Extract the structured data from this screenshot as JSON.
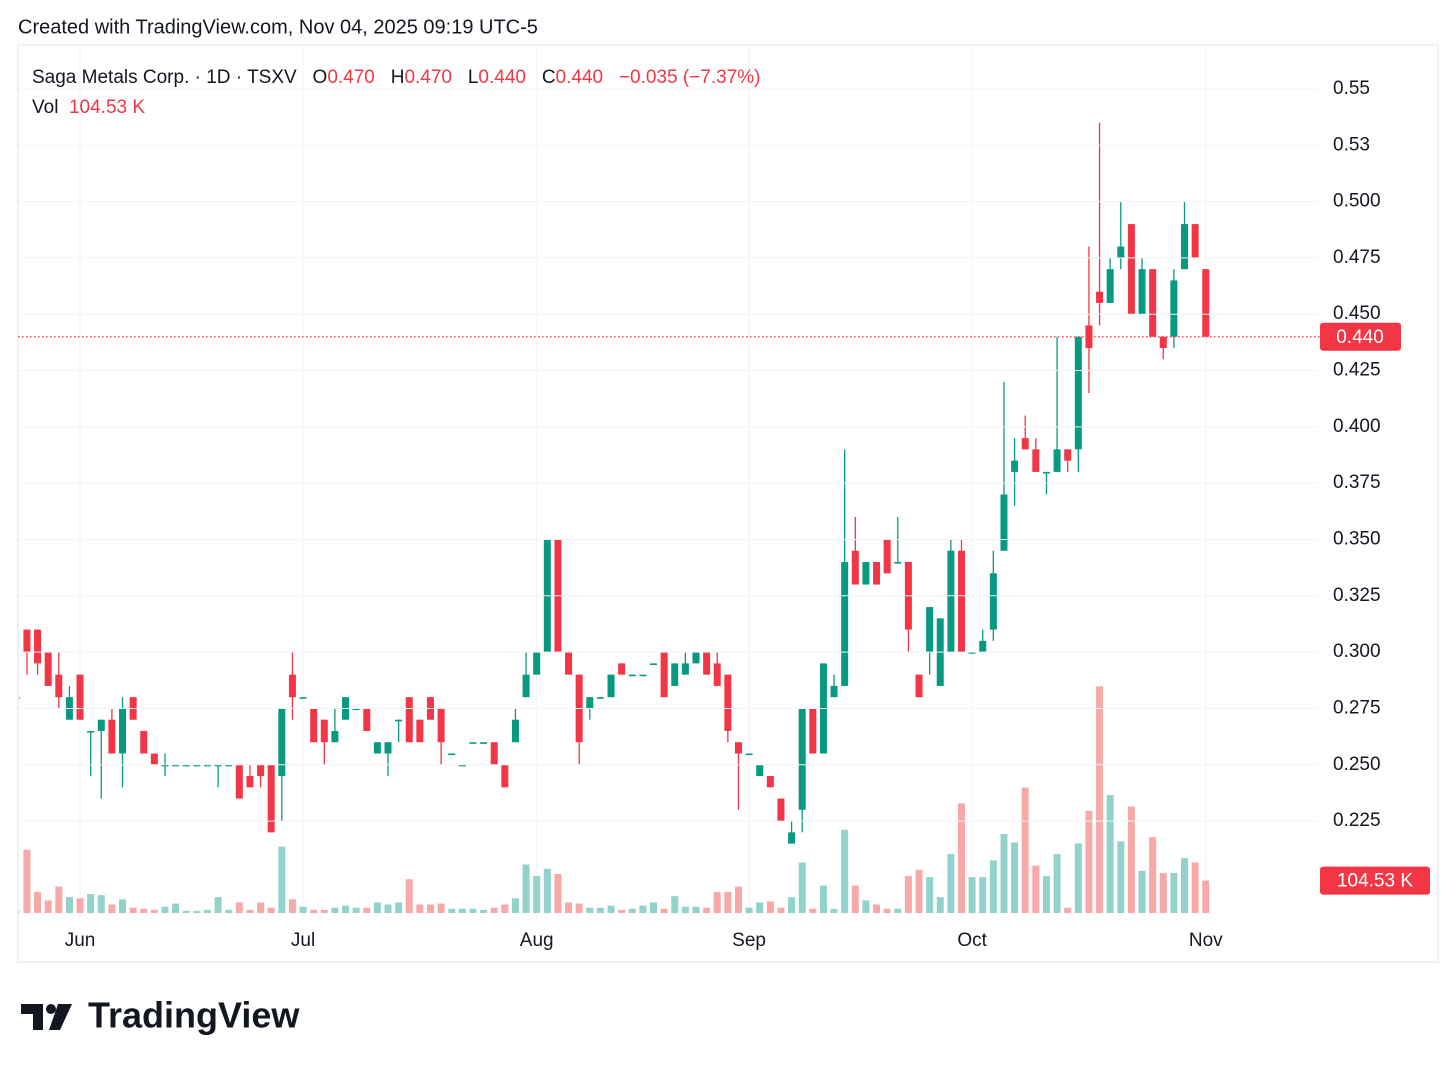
{
  "header": "Created with TradingView.com, Nov 04, 2025 09:19 UTC-5",
  "brand": "TradingView",
  "chart_data": {
    "type": "candlestick",
    "legend": {
      "symbol": "Saga Metals Corp. · 1D · TSXV",
      "open_label": "O",
      "open": "0.470",
      "high_label": "H",
      "high": "0.470",
      "low_label": "L",
      "low": "0.440",
      "close_label": "C",
      "close": "0.440",
      "change": "−0.035 (−7.37%)",
      "volume_label": "Vol",
      "volume": "104.53 K"
    },
    "up_color": "#089981",
    "down_color": "#f23645",
    "up_volume_color": "#92d2cc",
    "down_volume_color": "#f7a9a7",
    "categories": [
      null,
      null,
      null,
      null,
      null,
      null,
      "Jun",
      null,
      null,
      null,
      null,
      null,
      null,
      null,
      null,
      null,
      null,
      null,
      null,
      null,
      null,
      null,
      null,
      null,
      null,
      null,
      null,
      "Jul",
      null,
      null,
      null,
      null,
      null,
      null,
      null,
      null,
      null,
      null,
      null,
      null,
      null,
      null,
      null,
      null,
      null,
      null,
      null,
      null,
      null,
      "Aug",
      null,
      null,
      null,
      null,
      null,
      null,
      null,
      null,
      null,
      null,
      null,
      null,
      null,
      null,
      null,
      null,
      null,
      null,
      null,
      "Sep",
      null,
      null,
      null,
      null,
      null,
      null,
      null,
      null,
      null,
      null,
      null,
      null,
      null,
      null,
      null,
      null,
      null,
      null,
      null,
      null,
      "Oct",
      null,
      null,
      null,
      null,
      null,
      null,
      null,
      null,
      null,
      null,
      null,
      null,
      null,
      null,
      null,
      null,
      null,
      null,
      null,
      null,
      null,
      "Nov"
    ],
    "open": [
      0.28,
      0.31,
      0.31,
      0.3,
      0.29,
      0.27,
      0.29,
      0.265,
      0.265,
      0.27,
      0.255,
      0.28,
      0.265,
      0.255,
      0.25,
      0.25,
      0.25,
      0.25,
      0.25,
      0.25,
      0.25,
      0.25,
      0.245,
      0.25,
      0.25,
      0.245,
      0.29,
      0.28,
      0.275,
      0.27,
      0.26,
      0.27,
      0.275,
      0.275,
      0.255,
      0.255,
      0.27,
      0.28,
      0.27,
      0.28,
      0.275,
      0.255,
      0.25,
      0.26,
      0.26,
      0.26,
      0.25,
      0.26,
      0.28,
      0.29,
      0.3,
      0.35,
      0.3,
      0.29,
      0.275,
      0.28,
      0.28,
      0.295,
      0.29,
      0.29,
      0.295,
      0.3,
      0.285,
      0.29,
      0.295,
      0.3,
      0.295,
      0.29,
      0.26,
      0.255,
      0.245,
      0.245,
      0.235,
      0.215,
      0.23,
      0.275,
      0.255,
      0.28,
      0.285,
      0.345,
      0.33,
      0.34,
      0.35,
      0.34,
      0.34,
      0.29,
      0.3,
      0.285,
      0.3,
      0.345,
      0.3,
      0.3,
      0.31,
      0.345,
      0.38,
      0.395,
      0.39,
      0.38,
      0.38,
      0.39,
      0.39,
      0.445,
      0.46,
      0.455,
      0.475,
      0.49,
      0.45,
      0.47,
      0.44,
      0.44,
      0.47,
      0.49,
      0.47
    ],
    "high": [
      0.28,
      0.31,
      0.31,
      0.3,
      0.3,
      0.285,
      0.29,
      0.265,
      0.27,
      0.275,
      0.28,
      0.28,
      0.265,
      0.255,
      0.255,
      0.25,
      0.25,
      0.25,
      0.25,
      0.25,
      0.25,
      0.25,
      0.25,
      0.25,
      0.25,
      0.275,
      0.3,
      0.28,
      0.275,
      0.27,
      0.275,
      0.28,
      0.275,
      0.275,
      0.26,
      0.26,
      0.27,
      0.28,
      0.27,
      0.28,
      0.275,
      0.255,
      0.25,
      0.26,
      0.26,
      0.26,
      0.25,
      0.275,
      0.3,
      0.3,
      0.35,
      0.35,
      0.3,
      0.29,
      0.28,
      0.28,
      0.29,
      0.295,
      0.29,
      0.29,
      0.295,
      0.3,
      0.295,
      0.3,
      0.3,
      0.3,
      0.3,
      0.29,
      0.26,
      0.255,
      0.25,
      0.245,
      0.235,
      0.225,
      0.275,
      0.275,
      0.295,
      0.29,
      0.39,
      0.36,
      0.34,
      0.34,
      0.35,
      0.36,
      0.34,
      0.29,
      0.32,
      0.315,
      0.35,
      0.35,
      0.3,
      0.31,
      0.345,
      0.42,
      0.395,
      0.405,
      0.395,
      0.38,
      0.44,
      0.39,
      0.44,
      0.48,
      0.535,
      0.475,
      0.5,
      0.49,
      0.475,
      0.47,
      0.44,
      0.47,
      0.5,
      0.49,
      0.47
    ],
    "low": [
      0.28,
      0.29,
      0.29,
      0.285,
      0.275,
      0.27,
      0.27,
      0.245,
      0.235,
      0.255,
      0.24,
      0.27,
      0.255,
      0.25,
      0.245,
      0.25,
      0.25,
      0.25,
      0.25,
      0.24,
      0.25,
      0.235,
      0.24,
      0.24,
      0.22,
      0.225,
      0.27,
      0.28,
      0.26,
      0.25,
      0.26,
      0.27,
      0.275,
      0.265,
      0.255,
      0.245,
      0.26,
      0.26,
      0.26,
      0.27,
      0.25,
      0.255,
      0.25,
      0.26,
      0.26,
      0.25,
      0.24,
      0.26,
      0.28,
      0.29,
      0.3,
      0.3,
      0.29,
      0.25,
      0.27,
      0.28,
      0.28,
      0.29,
      0.29,
      0.29,
      0.295,
      0.28,
      0.285,
      0.29,
      0.295,
      0.29,
      0.285,
      0.26,
      0.23,
      0.255,
      0.245,
      0.24,
      0.225,
      0.215,
      0.22,
      0.255,
      0.255,
      0.28,
      0.285,
      0.33,
      0.33,
      0.33,
      0.335,
      0.34,
      0.3,
      0.28,
      0.29,
      0.285,
      0.3,
      0.3,
      0.3,
      0.3,
      0.305,
      0.345,
      0.365,
      0.39,
      0.38,
      0.37,
      0.38,
      0.38,
      0.38,
      0.415,
      0.445,
      0.455,
      0.47,
      0.45,
      0.45,
      0.44,
      0.43,
      0.435,
      0.47,
      0.475,
      0.44
    ],
    "close": [
      0.28,
      0.3,
      0.295,
      0.285,
      0.28,
      0.28,
      0.27,
      0.265,
      0.27,
      0.255,
      0.275,
      0.27,
      0.255,
      0.25,
      0.25,
      0.25,
      0.25,
      0.25,
      0.25,
      0.25,
      0.25,
      0.235,
      0.24,
      0.245,
      0.22,
      0.275,
      0.28,
      0.28,
      0.26,
      0.26,
      0.265,
      0.28,
      0.275,
      0.265,
      0.26,
      0.26,
      0.27,
      0.26,
      0.26,
      0.27,
      0.26,
      0.255,
      0.25,
      0.26,
      0.26,
      0.25,
      0.24,
      0.27,
      0.29,
      0.3,
      0.35,
      0.3,
      0.29,
      0.26,
      0.28,
      0.28,
      0.29,
      0.29,
      0.29,
      0.29,
      0.295,
      0.28,
      0.295,
      0.295,
      0.3,
      0.29,
      0.285,
      0.265,
      0.255,
      0.255,
      0.25,
      0.24,
      0.225,
      0.22,
      0.275,
      0.255,
      0.295,
      0.285,
      0.34,
      0.33,
      0.34,
      0.33,
      0.335,
      0.34,
      0.31,
      0.28,
      0.32,
      0.315,
      0.345,
      0.3,
      0.3,
      0.305,
      0.335,
      0.37,
      0.385,
      0.39,
      0.38,
      0.38,
      0.39,
      0.385,
      0.44,
      0.435,
      0.455,
      0.47,
      0.48,
      0.45,
      0.47,
      0.44,
      0.435,
      0.465,
      0.49,
      0.475,
      0.44
    ],
    "volume": [
      6800,
      204000,
      68000,
      40800,
      85000,
      51000,
      47600,
      61200,
      57800,
      27200,
      44200,
      17000,
      13600,
      10200,
      20400,
      30600,
      6800,
      6800,
      10200,
      51000,
      10200,
      34000,
      10200,
      34000,
      17000,
      214200,
      44200,
      20400,
      10200,
      10200,
      17000,
      23800,
      17000,
      17000,
      34000,
      27200,
      34000,
      108800,
      27200,
      27200,
      30600,
      13600,
      13600,
      13600,
      10200,
      17000,
      27200,
      47600,
      156400,
      119000,
      142800,
      125800,
      34000,
      30600,
      17000,
      17000,
      23800,
      10200,
      13600,
      23800,
      34000,
      13600,
      54400,
      20400,
      20400,
      17000,
      68000,
      68000,
      85000,
      17000,
      34000,
      37400,
      17000,
      51000,
      163200,
      13600,
      88400,
      13600,
      268600,
      88400,
      40800,
      27200,
      13600,
      13600,
      119000,
      139400,
      115600,
      51000,
      190400,
      353600,
      115600,
      115600,
      170000,
      255000,
      227800,
      404600,
      153000,
      119000,
      190400,
      17000,
      224400,
      329800,
      731000,
      380800,
      231200,
      343400,
      136000,
      244800,
      129200,
      129200,
      176800,
      163200,
      104530
    ],
    "ylim": [
      0.1842,
      0.5695
    ],
    "yticks": [
      0.225,
      {
        "value": 0.25,
        "label": "0.250"
      },
      0.275,
      {
        "value": 0.3,
        "label": "0.300"
      },
      0.325,
      {
        "value": 0.35,
        "label": "0.350"
      },
      0.375,
      {
        "value": 0.4,
        "label": "0.400"
      },
      0.425,
      {
        "value": 0.45,
        "label": "0.450"
      },
      0.475,
      {
        "value": 0.5,
        "label": "0.500"
      },
      {
        "value": 0.525,
        "label": "0.53"
      },
      0.55
    ],
    "volume_ylim": [
      0,
      1000000
    ],
    "last_price": {
      "value": 0.44,
      "label": "0.440"
    },
    "grid": true
  }
}
